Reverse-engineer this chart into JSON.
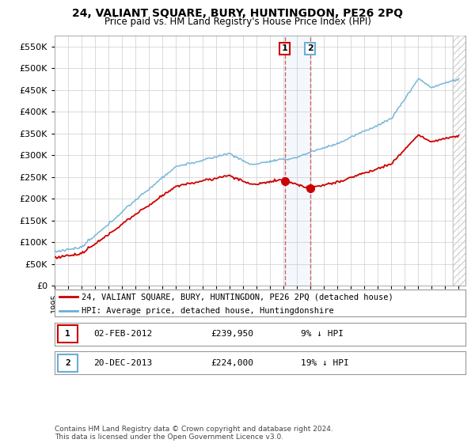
{
  "title": "24, VALIANT SQUARE, BURY, HUNTINGDON, PE26 2PQ",
  "subtitle": "Price paid vs. HM Land Registry's House Price Index (HPI)",
  "ylim": [
    0,
    575000
  ],
  "yticks": [
    0,
    50000,
    100000,
    150000,
    200000,
    250000,
    300000,
    350000,
    400000,
    450000,
    500000,
    550000
  ],
  "sale1_date": 2012.085,
  "sale1_price": 239950,
  "sale1_label": "1",
  "sale2_date": 2013.97,
  "sale2_price": 224000,
  "sale2_label": "2",
  "legend_entry1": "24, VALIANT SQUARE, BURY, HUNTINGDON, PE26 2PQ (detached house)",
  "legend_entry2": "HPI: Average price, detached house, Huntingdonshire",
  "footer": "Contains HM Land Registry data © Crown copyright and database right 2024.\nThis data is licensed under the Open Government Licence v3.0.",
  "hpi_color": "#6baed6",
  "price_color": "#cc0000",
  "vline_color": "#cc6666",
  "bg_color": "#ffffff",
  "grid_color": "#cccccc",
  "xlim_left": 1995.0,
  "xlim_right": 2025.5,
  "hatch_start": 2024.58,
  "ann1_date": "02-FEB-2012",
  "ann1_price": "£239,950",
  "ann1_hpi": "9% ↓ HPI",
  "ann2_date": "20-DEC-2013",
  "ann2_price": "£224,000",
  "ann2_hpi": "19% ↓ HPI"
}
